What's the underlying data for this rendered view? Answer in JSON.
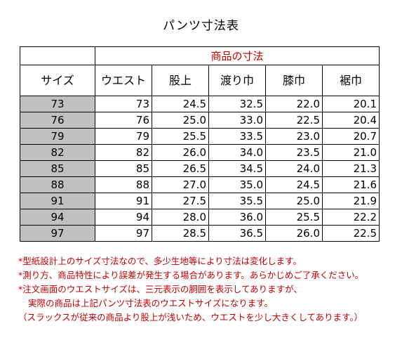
{
  "title": "パンツ寸法表",
  "table": {
    "caption": "商品の寸法",
    "headers": [
      "サイズ",
      "ウエスト",
      "股上",
      "渡り巾",
      "膝巾",
      "裾巾"
    ],
    "rows": [
      [
        "73",
        "73",
        "24.5",
        "32.5",
        "22.0",
        "20.1"
      ],
      [
        "76",
        "76",
        "25.0",
        "33.0",
        "22.5",
        "20.4"
      ],
      [
        "79",
        "79",
        "25.5",
        "33.5",
        "23.0",
        "20.7"
      ],
      [
        "82",
        "82",
        "26.0",
        "34.0",
        "23.5",
        "21.0"
      ],
      [
        "85",
        "85",
        "26.5",
        "34.5",
        "24.0",
        "21.3"
      ],
      [
        "88",
        "88",
        "27.0",
        "35.0",
        "24.5",
        "21.6"
      ],
      [
        "91",
        "91",
        "27.5",
        "35.5",
        "25.0",
        "21.9"
      ],
      [
        "94",
        "94",
        "28.0",
        "36.0",
        "25.5",
        "22.2"
      ],
      [
        "97",
        "97",
        "28.5",
        "36.5",
        "26.0",
        "22.5"
      ]
    ]
  },
  "notes": [
    "*型紙設計上のサイズ寸法なので、多少生地等により寸法は変化します。",
    "*測り方、商品特性により誤差が発生する場合があります。あらかじめご了承ください。",
    "*注文画面のウエストサイズは、三元表示の胴囲を表示してありますが、",
    "実際の商品は上記パンツ寸法表のウエストサイズになります。",
    "（スラックスが従来の商品より股上が浅いため、ウエストを少し大きくしてあります。）"
  ],
  "colors": {
    "note_text": "#c00000",
    "size_cell_bg": "#c0c0c0"
  }
}
